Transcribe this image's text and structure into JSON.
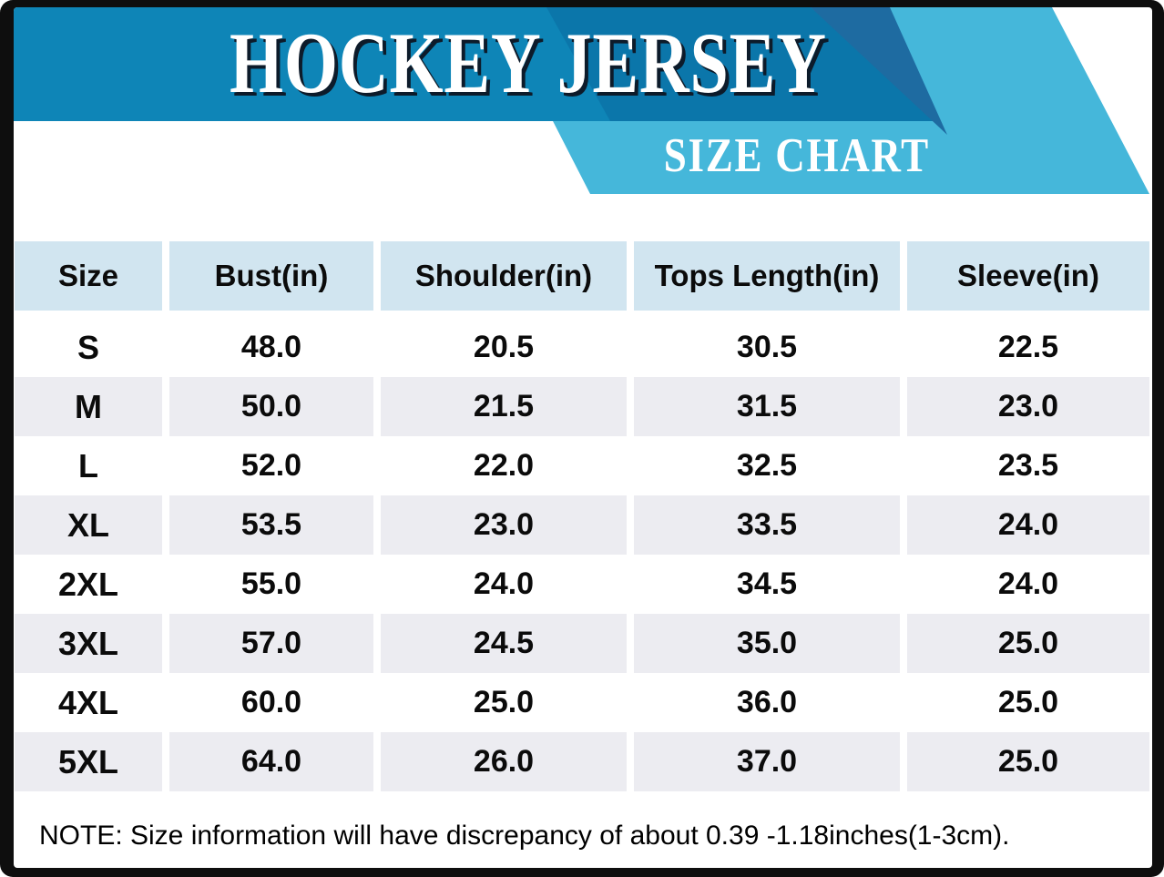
{
  "header": {
    "title": "HOCKEY JERSEY",
    "subtitle": "SIZE CHART"
  },
  "colors": {
    "frame_black": "#0e0e0e",
    "banner_dark_blue": "#0e85b7",
    "banner_shade_blue": "#0b76aa",
    "banner_wedge_blue": "#1e6ba1",
    "banner_light_blue": "#45b7da",
    "table_header_blue": "#d1e5f0",
    "row_alt_gray": "#ececf1",
    "text_black": "#0b0b0b"
  },
  "chart_data": {
    "type": "table",
    "title": "HOCKEY JERSEY",
    "subtitle": "SIZE CHART",
    "columns": [
      "Size",
      "Bust(in)",
      "Shoulder(in)",
      "Tops Length(in)",
      "Sleeve(in)"
    ],
    "rows": [
      [
        "S",
        "48.0",
        "20.5",
        "30.5",
        "22.5"
      ],
      [
        "M",
        "50.0",
        "21.5",
        "31.5",
        "23.0"
      ],
      [
        "L",
        "52.0",
        "22.0",
        "32.5",
        "23.5"
      ],
      [
        "XL",
        "53.5",
        "23.0",
        "33.5",
        "24.0"
      ],
      [
        "2XL",
        "55.0",
        "24.0",
        "34.5",
        "24.0"
      ],
      [
        "3XL",
        "57.0",
        "24.5",
        "35.0",
        "25.0"
      ],
      [
        "4XL",
        "60.0",
        "25.0",
        "36.0",
        "25.0"
      ],
      [
        "5XL",
        "64.0",
        "26.0",
        "37.0",
        "25.0"
      ]
    ],
    "units": "inches",
    "layout": "header row light blue, data rows alternate white and light gray"
  },
  "note": "NOTE: Size information will have discrepancy of about 0.39 -1.18inches(1-3cm)."
}
